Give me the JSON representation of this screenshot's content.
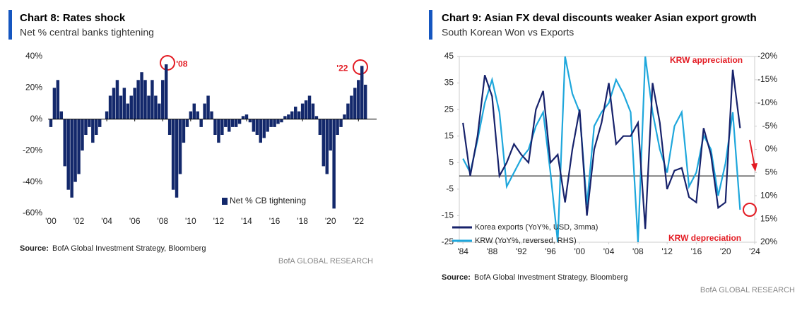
{
  "chart_data": [
    {
      "type": "bar",
      "title": "Chart 8: Rates shock",
      "subtitle": "Net % central banks tightening",
      "source": "Source:",
      "source_text": "BofA Global Investment Strategy, Bloomberg",
      "brand": "BofA GLOBAL RESEARCH",
      "series": [
        {
          "name": "Net % CB tightening",
          "color": "#13286b",
          "x": [
            2000,
            2000.25,
            2000.5,
            2000.75,
            2001,
            2001.25,
            2001.5,
            2001.75,
            2002,
            2002.25,
            2002.5,
            2002.75,
            2003,
            2003.25,
            2003.5,
            2003.75,
            2004,
            2004.25,
            2004.5,
            2004.75,
            2005,
            2005.25,
            2005.5,
            2005.75,
            2006,
            2006.25,
            2006.5,
            2006.75,
            2007,
            2007.25,
            2007.5,
            2007.75,
            2008,
            2008.25,
            2008.5,
            2008.75,
            2009,
            2009.25,
            2009.5,
            2009.75,
            2010,
            2010.25,
            2010.5,
            2010.75,
            2011,
            2011.25,
            2011.5,
            2011.75,
            2012,
            2012.25,
            2012.5,
            2012.75,
            2013,
            2013.25,
            2013.5,
            2013.75,
            2014,
            2014.25,
            2014.5,
            2014.75,
            2015,
            2015.25,
            2015.5,
            2015.75,
            2016,
            2016.25,
            2016.5,
            2016.75,
            2017,
            2017.25,
            2017.5,
            2017.75,
            2018,
            2018.25,
            2018.5,
            2018.75,
            2019,
            2019.25,
            2019.5,
            2019.75,
            2020,
            2020.25,
            2020.5,
            2020.75,
            2021,
            2021.25,
            2021.5,
            2021.75,
            2022,
            2022.25,
            2022.5
          ],
          "values": [
            -5,
            20,
            25,
            5,
            -30,
            -45,
            -50,
            -40,
            -35,
            -20,
            -10,
            -5,
            -15,
            -10,
            -5,
            0,
            5,
            15,
            20,
            25,
            15,
            20,
            10,
            15,
            20,
            25,
            30,
            25,
            15,
            25,
            15,
            10,
            25,
            35,
            -10,
            -45,
            -50,
            -35,
            -15,
            -5,
            5,
            10,
            5,
            -5,
            10,
            15,
            5,
            -10,
            -15,
            -10,
            -5,
            -8,
            -5,
            -5,
            -3,
            2,
            3,
            -2,
            -8,
            -10,
            -15,
            -12,
            -8,
            -5,
            -5,
            -3,
            -2,
            2,
            3,
            5,
            8,
            5,
            10,
            12,
            15,
            10,
            2,
            -10,
            -30,
            -35,
            -20,
            -57,
            -10,
            -5,
            3,
            10,
            15,
            20,
            25,
            34,
            22
          ]
        }
      ],
      "xlim": [
        1999.8,
        2023.3
      ],
      "ylim": [
        -60,
        40
      ],
      "xticks": [
        {
          "value": 2000,
          "label": "'00"
        },
        {
          "value": 2002,
          "label": "'02"
        },
        {
          "value": 2004,
          "label": "'04"
        },
        {
          "value": 2006,
          "label": "'06"
        },
        {
          "value": 2008,
          "label": "'08"
        },
        {
          "value": 2010,
          "label": "'10"
        },
        {
          "value": 2012,
          "label": "'12"
        },
        {
          "value": 2014,
          "label": "'14"
        },
        {
          "value": 2016,
          "label": "'16"
        },
        {
          "value": 2018,
          "label": "'18"
        },
        {
          "value": 2020,
          "label": "'20"
        },
        {
          "value": 2022,
          "label": "'22"
        }
      ],
      "yticks": [
        {
          "value": -60,
          "label": "-60%"
        },
        {
          "value": -40,
          "label": "-40%"
        },
        {
          "value": -20,
          "label": "-20%"
        },
        {
          "value": 0,
          "label": "0%"
        },
        {
          "value": 20,
          "label": "20%"
        },
        {
          "value": 40,
          "label": "40%"
        }
      ],
      "annotations": [
        {
          "text": "'08",
          "x": 2008.25,
          "y": 35
        },
        {
          "text": "'22",
          "x": 2022.25,
          "y": 34
        }
      ],
      "legend": "lower right"
    },
    {
      "type": "line",
      "title": "Chart 9: Asian FX deval discounts weaker Asian export growth",
      "subtitle": "South Korean Won vs Exports",
      "source": "Source:",
      "source_text": "BofA Global Investment Strategy, Bloomberg",
      "brand": "BofA GLOBAL RESEARCH",
      "x": [
        1984,
        1985,
        1986,
        1987,
        1988,
        1989,
        1990,
        1991,
        1992,
        1993,
        1994,
        1995,
        1996,
        1997,
        1998,
        1999,
        2000,
        2001,
        2002,
        2003,
        2004,
        2005,
        2006,
        2007,
        2008,
        2009,
        2010,
        2011,
        2012,
        2013,
        2014,
        2015,
        2016,
        2017,
        2018,
        2019,
        2020,
        2021,
        2022
      ],
      "series": [
        {
          "name": "Korea exports (YoY%, USD, 3mma)",
          "color": "#17226b",
          "values": [
            20,
            0,
            15,
            38,
            30,
            0,
            5,
            12,
            8,
            5,
            25,
            32,
            5,
            8,
            -10,
            10,
            25,
            -15,
            10,
            20,
            35,
            12,
            15,
            15,
            20,
            -20,
            35,
            20,
            -5,
            2,
            3,
            -8,
            -10,
            18,
            8,
            -12,
            -10,
            40,
            18
          ]
        },
        {
          "name": "KRW (YoY%, reversed, RHS)",
          "color": "#1ea7dc",
          "axis": "y2",
          "values": [
            2,
            5,
            -2,
            -10,
            -15,
            -8,
            8,
            5,
            2,
            0,
            -5,
            -8,
            5,
            20,
            -20,
            -12,
            -8,
            12,
            -5,
            -8,
            -10,
            -15,
            -12,
            -8,
            20,
            -20,
            -8,
            0,
            5,
            -5,
            -8,
            8,
            5,
            -3,
            0,
            10,
            3,
            -8,
            13
          ]
        }
      ],
      "xlim": [
        1983.5,
        2024
      ],
      "ylim": [
        -25,
        45
      ],
      "y2lim": [
        20,
        -20
      ],
      "hline": 0,
      "xticks": [
        {
          "value": 1984,
          "label": "'84"
        },
        {
          "value": 1988,
          "label": "'88"
        },
        {
          "value": 1992,
          "label": "'92"
        },
        {
          "value": 1996,
          "label": "'96"
        },
        {
          "value": 2000,
          "label": "'00"
        },
        {
          "value": 2004,
          "label": "'04"
        },
        {
          "value": 2008,
          "label": "'08"
        },
        {
          "value": 2012,
          "label": "'12"
        },
        {
          "value": 2016,
          "label": "'16"
        },
        {
          "value": 2020,
          "label": "'20"
        },
        {
          "value": 2024,
          "label": "'24"
        }
      ],
      "yticks": [
        -25,
        -15,
        -5,
        5,
        15,
        25,
        35,
        45
      ],
      "y2ticks": [
        {
          "value": -20,
          "label": "-20%"
        },
        {
          "value": -15,
          "label": "-15%"
        },
        {
          "value": -10,
          "label": "-10%"
        },
        {
          "value": -5,
          "label": "-5%"
        },
        {
          "value": 0,
          "label": "0%"
        },
        {
          "value": 5,
          "label": "5%"
        },
        {
          "value": 10,
          "label": "10%"
        },
        {
          "value": 15,
          "label": "15%"
        },
        {
          "value": 20,
          "label": "20%"
        }
      ],
      "annotations": [
        {
          "text": "KRW appreciation"
        },
        {
          "text": "KRW depreciation"
        }
      ],
      "legend": "lower left"
    }
  ]
}
